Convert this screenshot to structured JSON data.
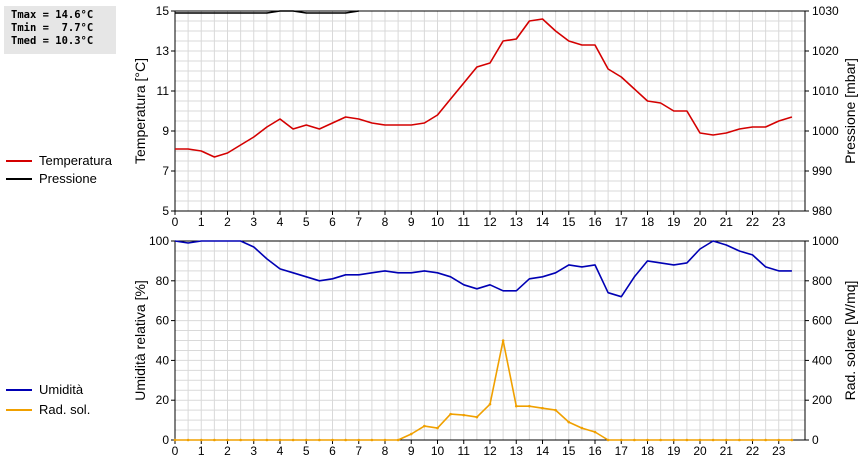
{
  "stats": {
    "tmax": "Tmax = 14.6°C",
    "tmin": "Tmin =  7.7°C",
    "tmed": "Tmed = 10.3°C"
  },
  "legend_top": [
    {
      "label": "Temperatura",
      "color": "#d40000"
    },
    {
      "label": "Pressione",
      "color": "#000000"
    }
  ],
  "legend_bottom": [
    {
      "label": "Umidità",
      "color": "#0000b4"
    },
    {
      "label": "Rad. sol.",
      "color": "#f0a000"
    }
  ],
  "chart_data": [
    {
      "type": "line",
      "xlabel": "",
      "xlim": [
        0,
        24
      ],
      "xticks": [
        "0",
        "1",
        "2",
        "3",
        "4",
        "5",
        "6",
        "7",
        "8",
        "9",
        "10",
        "11",
        "12",
        "13",
        "14",
        "15",
        "16",
        "17",
        "18",
        "19",
        "20",
        "21",
        "22",
        "23"
      ],
      "ylabel": "Temperatura [°C]",
      "ylim": [
        5,
        15
      ],
      "yticks": [
        "5",
        "7",
        "9",
        "11",
        "13",
        "15"
      ],
      "y2label": "Pressione [mbar]",
      "y2lim": [
        980,
        1030
      ],
      "y2ticks": [
        "980",
        "990",
        "1000",
        "1010",
        "1020",
        "1030"
      ],
      "grid": true,
      "series": [
        {
          "name": "Temperatura",
          "color": "#d40000",
          "axis": "left",
          "x": [
            0,
            0.5,
            1,
            1.5,
            2,
            2.5,
            3,
            3.5,
            4,
            4.5,
            5,
            5.5,
            6,
            6.5,
            7,
            7.5,
            8,
            8.5,
            9,
            9.5,
            10,
            10.5,
            11,
            11.5,
            12,
            12.5,
            13,
            13.5,
            14,
            14.5,
            15,
            15.5,
            16,
            16.5,
            17,
            17.5,
            18,
            18.5,
            19,
            19.5,
            20,
            20.5,
            21,
            21.5,
            22,
            22.5,
            23,
            23.5
          ],
          "y": [
            8.1,
            8.1,
            8.0,
            7.7,
            7.9,
            8.3,
            8.7,
            9.2,
            9.6,
            9.1,
            9.3,
            9.1,
            9.4,
            9.7,
            9.6,
            9.4,
            9.3,
            9.3,
            9.3,
            9.4,
            9.8,
            10.6,
            11.4,
            12.2,
            12.4,
            13.5,
            13.6,
            14.5,
            14.6,
            14.0,
            13.5,
            13.3,
            13.3,
            12.1,
            11.7,
            11.1,
            10.5,
            10.4,
            10.0,
            10.0,
            8.9,
            8.8,
            8.9,
            9.1,
            9.2,
            9.2,
            9.5,
            9.7
          ]
        },
        {
          "name": "Pressione",
          "color": "#000000",
          "axis": "right",
          "x": [
            0,
            0.5,
            1,
            1.5,
            2,
            2.5,
            3,
            3.5,
            4,
            4.5,
            5,
            5.5,
            6,
            6.5,
            7
          ],
          "y": [
            1029.5,
            1029.5,
            1029.5,
            1029.5,
            1029.5,
            1029.5,
            1029.5,
            1029.5,
            1030,
            1030,
            1029.5,
            1029.5,
            1029.5,
            1029.5,
            1030
          ]
        }
      ]
    },
    {
      "type": "line",
      "xlabel": "",
      "xlim": [
        0,
        24
      ],
      "xticks": [
        "0",
        "1",
        "2",
        "3",
        "4",
        "5",
        "6",
        "7",
        "8",
        "9",
        "10",
        "11",
        "12",
        "13",
        "14",
        "15",
        "16",
        "17",
        "18",
        "19",
        "20",
        "21",
        "22",
        "23"
      ],
      "ylabel": "Umidità relativa [%]",
      "ylim": [
        0,
        100
      ],
      "yticks": [
        "0",
        "20",
        "40",
        "60",
        "80",
        "100"
      ],
      "y2label": "Rad. solare [W/mq]",
      "y2lim": [
        0,
        1000
      ],
      "y2ticks": [
        "0",
        "200",
        "400",
        "600",
        "800",
        "1000"
      ],
      "grid": true,
      "series": [
        {
          "name": "Umidità",
          "color": "#0000b4",
          "axis": "left",
          "x": [
            0,
            0.5,
            1,
            1.5,
            2,
            2.5,
            3,
            3.5,
            4,
            4.5,
            5,
            5.5,
            6,
            6.5,
            7,
            7.5,
            8,
            8.5,
            9,
            9.5,
            10,
            10.5,
            11,
            11.5,
            12,
            12.5,
            13,
            13.5,
            14,
            14.5,
            15,
            15.5,
            16,
            16.5,
            17,
            17.5,
            18,
            18.5,
            19,
            19.5,
            20,
            20.5,
            21,
            21.5,
            22,
            22.5,
            23,
            23.5
          ],
          "y": [
            100,
            99,
            100,
            100,
            100,
            100,
            97,
            91,
            86,
            84,
            82,
            80,
            81,
            83,
            83,
            84,
            85,
            84,
            84,
            85,
            84,
            82,
            78,
            76,
            78,
            75,
            75,
            81,
            82,
            84,
            88,
            87,
            88,
            74,
            72,
            82,
            90,
            89,
            88,
            89,
            96,
            100,
            98,
            95,
            93,
            87,
            85,
            85
          ]
        },
        {
          "name": "Rad. sol.",
          "color": "#f0a000",
          "axis": "right",
          "x": [
            0,
            0.5,
            1,
            1.5,
            2,
            2.5,
            3,
            3.5,
            4,
            4.5,
            5,
            5.5,
            6,
            6.5,
            7,
            7.5,
            8,
            8.5,
            9,
            9.5,
            10,
            10.5,
            11,
            11.5,
            12,
            12.5,
            13,
            13.5,
            14,
            14.5,
            15,
            15.5,
            16,
            16.5,
            17,
            17.5,
            18,
            18.5,
            19,
            19.5,
            20,
            20.5,
            21,
            21.5,
            22,
            22.5,
            23,
            23.5
          ],
          "y": [
            0,
            0,
            0,
            0,
            0,
            0,
            0,
            0,
            0,
            0,
            0,
            0,
            0,
            0,
            0,
            0,
            0,
            0,
            30,
            70,
            60,
            130,
            125,
            115,
            180,
            500,
            170,
            170,
            160,
            150,
            90,
            60,
            40,
            0,
            0,
            0,
            0,
            0,
            0,
            0,
            0,
            0,
            0,
            0,
            0,
            0,
            0,
            0
          ]
        }
      ]
    }
  ]
}
